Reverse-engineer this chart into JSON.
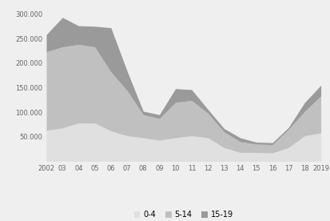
{
  "years": [
    2002,
    2003,
    2004,
    2005,
    2006,
    2007,
    2008,
    2009,
    2010,
    2011,
    2012,
    2013,
    2014,
    2015,
    2016,
    2017,
    2018,
    2019
  ],
  "age_0_4": [
    63000,
    68000,
    78000,
    78000,
    62000,
    52000,
    48000,
    43000,
    48000,
    52000,
    48000,
    28000,
    18000,
    18000,
    17000,
    28000,
    52000,
    58000
  ],
  "age_5_14": [
    160000,
    165000,
    160000,
    155000,
    120000,
    92000,
    47000,
    44000,
    72000,
    72000,
    50000,
    32000,
    22000,
    17000,
    17000,
    37000,
    50000,
    75000
  ],
  "age_15_19": [
    35000,
    60000,
    38000,
    42000,
    90000,
    40000,
    7000,
    8000,
    28000,
    22000,
    8000,
    7000,
    8000,
    4000,
    4000,
    4000,
    18000,
    22000
  ],
  "color_0_4": "#e0e0e0",
  "color_5_14": "#c0c0c0",
  "color_15_19": "#9a9a9a",
  "background": "#efefef",
  "ylabel_ticks": [
    "50.000",
    "100.000",
    "150.000",
    "200.000",
    "250.000",
    "300.000"
  ],
  "ytick_vals": [
    50000,
    100000,
    150000,
    200000,
    250000,
    300000
  ],
  "ylim": [
    0,
    315000
  ],
  "legend_labels": [
    "0-4",
    "5-14",
    "15-19"
  ]
}
